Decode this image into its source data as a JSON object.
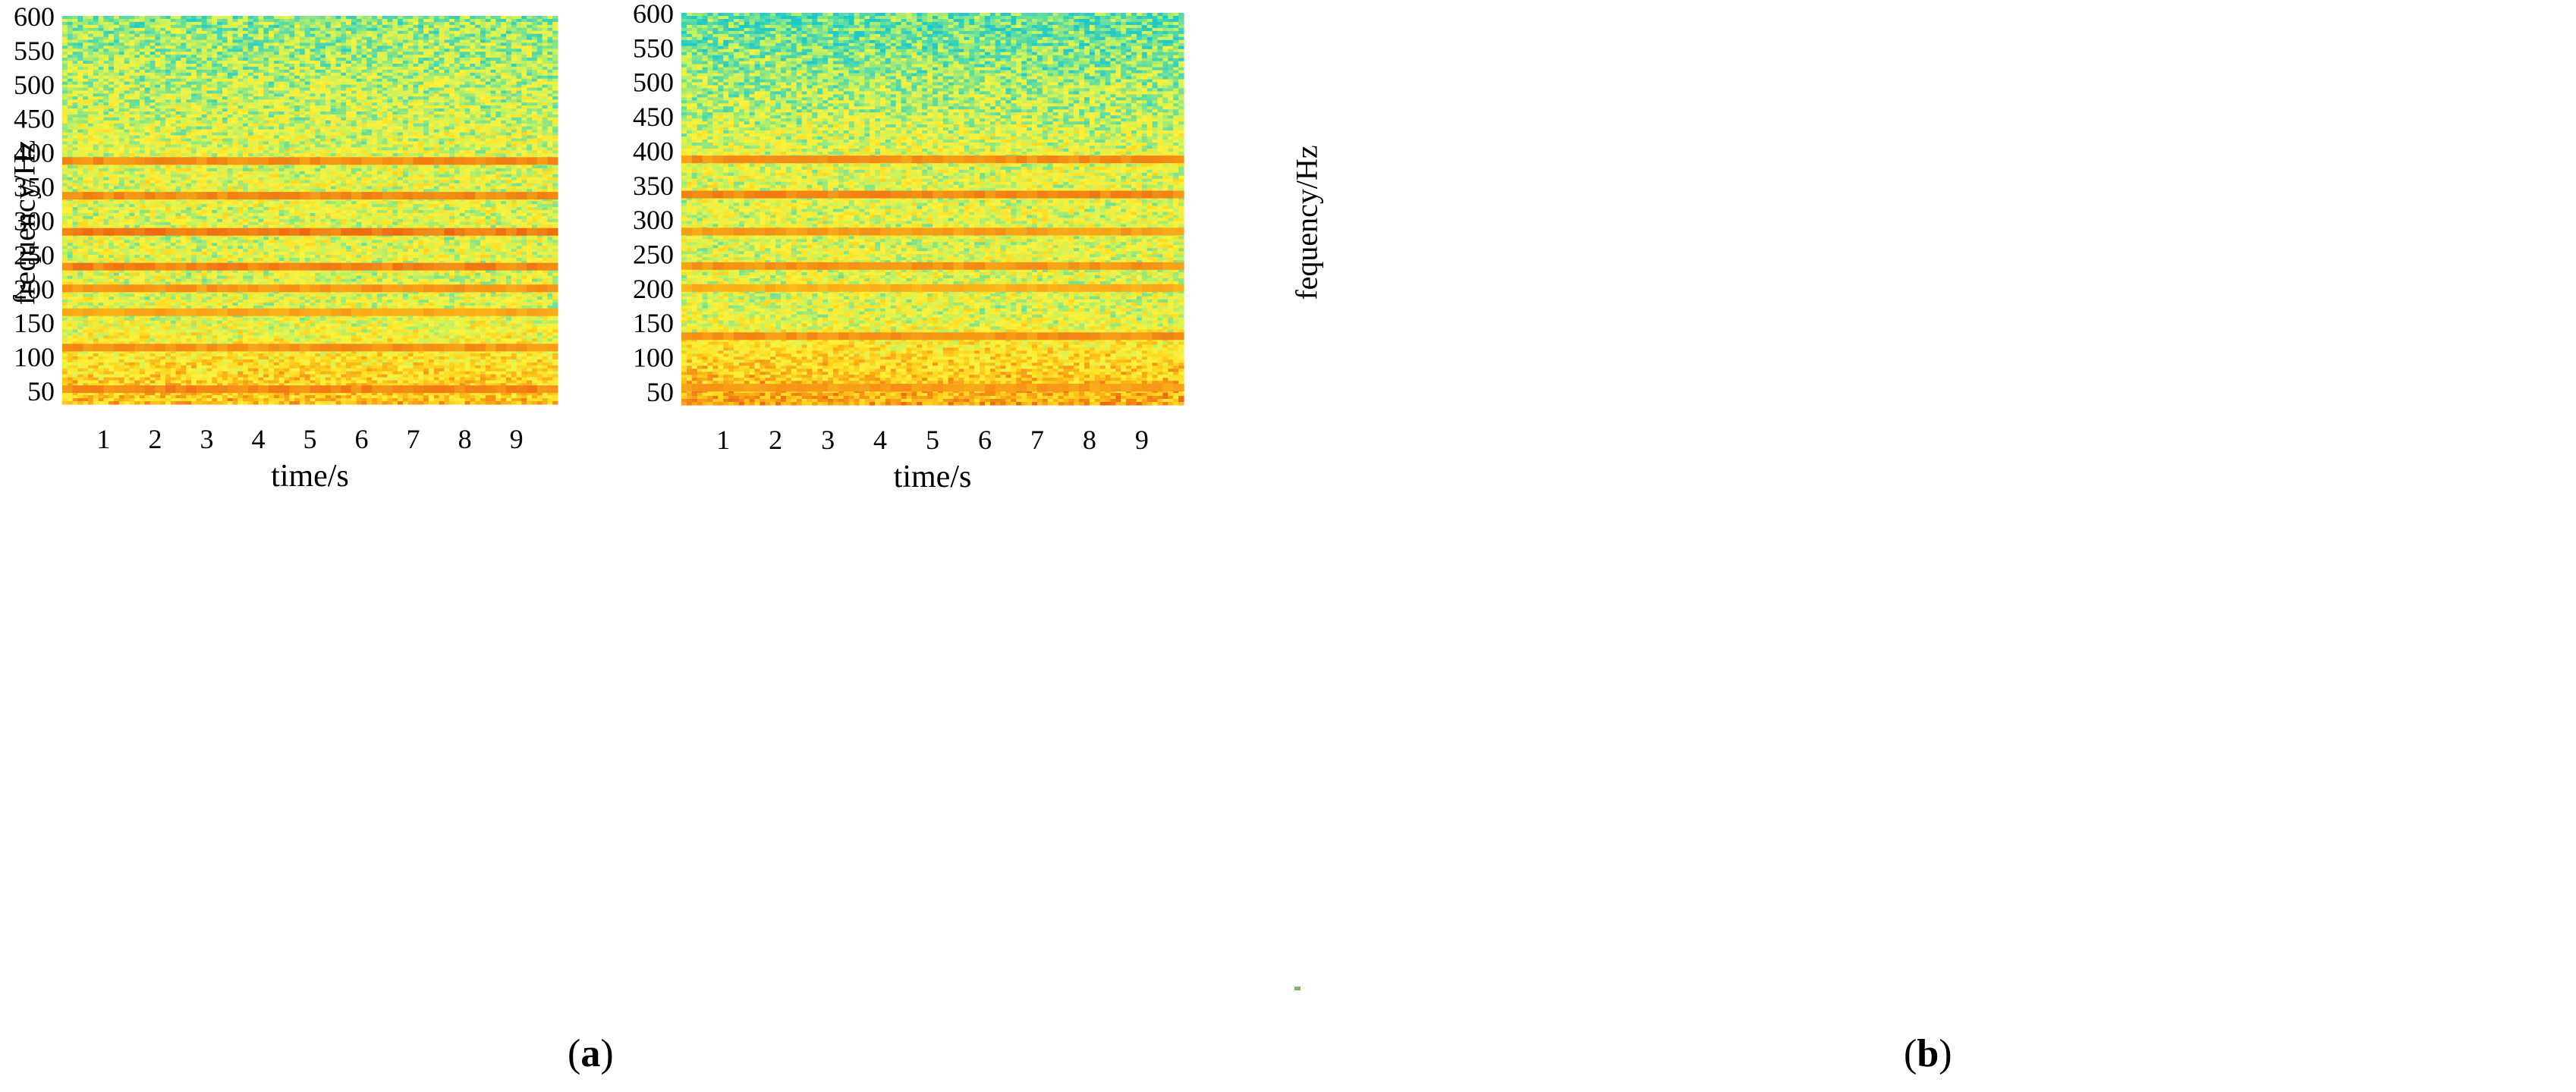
{
  "figure": {
    "panels": [
      {
        "caption_letter": "a"
      },
      {
        "caption_letter": "b"
      }
    ]
  },
  "chart_data": [
    {
      "type": "heatmap",
      "title": "",
      "xlabel": "time/s",
      "ylabel": "frequency/Hz",
      "xticks": [
        1,
        2,
        3,
        4,
        5,
        6,
        7,
        8,
        9
      ],
      "yticks": [
        50,
        100,
        150,
        200,
        250,
        300,
        350,
        400,
        450,
        500,
        550,
        600
      ],
      "xlim": [
        0.2,
        9.8
      ],
      "ylim": [
        30,
        600
      ],
      "colormap": [
        "#1fc9c9",
        "#62dda0",
        "#c9f25c",
        "#fff13a",
        "#ffd21c",
        "#f7a018",
        "#ee6a12"
      ],
      "harmonic_lines": [
        {
          "frequency": 52,
          "intensity": 0.85
        },
        {
          "frequency": 113,
          "intensity": 0.75
        },
        {
          "frequency": 165,
          "intensity": 0.62
        },
        {
          "frequency": 200,
          "intensity": 0.72
        },
        {
          "frequency": 232,
          "intensity": 0.88
        },
        {
          "frequency": 283,
          "intensity": 0.95
        },
        {
          "frequency": 336,
          "intensity": 0.8
        },
        {
          "frequency": 387,
          "intensity": 0.8
        }
      ]
    },
    {
      "type": "heatmap",
      "title": "",
      "xlabel": "time/s",
      "ylabel": "fequency/Hz",
      "xticks": [
        1,
        2,
        3,
        4,
        5,
        6,
        7,
        8,
        9
      ],
      "yticks": [
        50,
        100,
        150,
        200,
        250,
        300,
        350,
        400,
        450,
        500,
        550,
        600
      ],
      "xlim": [
        0.2,
        9.8
      ],
      "ylim": [
        30,
        600
      ],
      "colormap": [
        "#1fc9c9",
        "#62dda0",
        "#c9f25c",
        "#fff13a",
        "#ffd21c",
        "#f7a018",
        "#ee6a12"
      ],
      "harmonic_lines": [
        {
          "frequency": 55,
          "intensity": 0.7
        },
        {
          "frequency": 130,
          "intensity": 0.78
        },
        {
          "frequency": 200,
          "intensity": 0.55
        },
        {
          "frequency": 232,
          "intensity": 0.75
        },
        {
          "frequency": 282,
          "intensity": 0.7
        },
        {
          "frequency": 336,
          "intensity": 0.85
        },
        {
          "frequency": 387,
          "intensity": 0.78
        }
      ]
    }
  ]
}
